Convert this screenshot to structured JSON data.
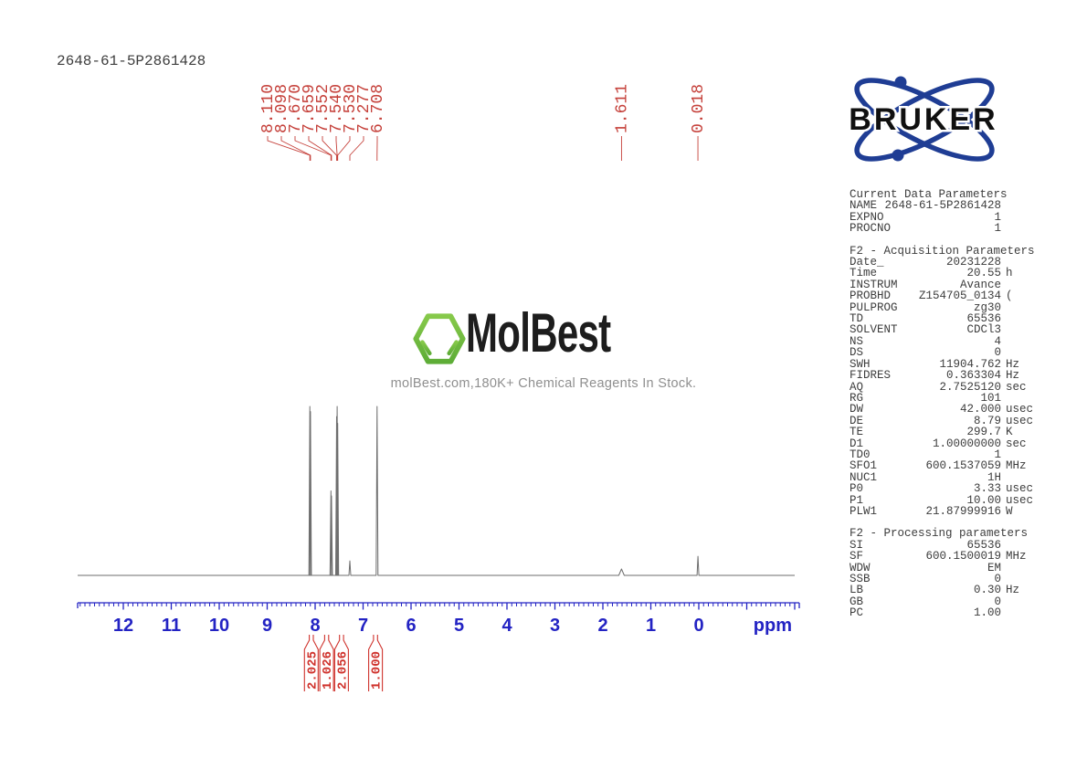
{
  "page": {
    "title": "2648-61-5P2861428"
  },
  "watermark": {
    "logo_text": "MolBest",
    "tagline": "molBest.com,180K+ Chemical Reagents In Stock."
  },
  "bruker": {
    "label": "BRUKER"
  },
  "colors": {
    "peak_label_red": "#c5403a",
    "integral_red": "#cf322c",
    "axis_blue": "#2323c3",
    "bruker_blue": "#1f3d94",
    "molbest_green": "#76c043",
    "spectrum_gray": "#6e6e6e",
    "text_dark": "#3d3d3d",
    "watermark_gray": "#8f8f8f"
  },
  "chart_data": {
    "type": "line",
    "title": "1H NMR spectrum 2648-61-5P2861428",
    "xlabel": "ppm",
    "x_ticks": [
      12,
      11,
      10,
      9,
      8,
      7,
      6,
      5,
      4,
      3,
      2,
      1,
      0
    ],
    "x_range_ppm": [
      12.95,
      -2.1
    ],
    "grid": false,
    "peak_labels": {
      "aromatic": [
        "8.110",
        "8.098",
        "7.670",
        "7.659",
        "7.552",
        "7.540",
        "7.530",
        "7.277",
        "6.708"
      ],
      "other": [
        "1.611",
        "0.018"
      ]
    },
    "peaks": [
      {
        "ppm": 8.11,
        "rel_height": 1.0
      },
      {
        "ppm": 8.098,
        "rel_height": 0.97
      },
      {
        "ppm": 7.67,
        "rel_height": 0.5
      },
      {
        "ppm": 7.659,
        "rel_height": 0.47
      },
      {
        "ppm": 7.552,
        "rel_height": 0.94
      },
      {
        "ppm": 7.54,
        "rel_height": 1.0
      },
      {
        "ppm": 7.53,
        "rel_height": 0.9
      },
      {
        "ppm": 7.277,
        "rel_height": 0.086
      },
      {
        "ppm": 6.708,
        "rel_height": 1.0
      },
      {
        "ppm": 1.611,
        "rel_height": 0.038,
        "broad": true
      },
      {
        "ppm": 0.018,
        "rel_height": 0.113
      }
    ],
    "integrals": [
      {
        "value": "2.025",
        "ppm": 8.08
      },
      {
        "value": "1.026",
        "ppm": 7.76
      },
      {
        "value": "2.056",
        "ppm": 7.45
      },
      {
        "value": "1.000",
        "ppm": 6.74
      }
    ]
  },
  "parameters": {
    "sections": [
      {
        "heading": "Current Data Parameters",
        "rows": [
          [
            "NAME",
            "2648-61-5P2861428",
            ""
          ],
          [
            "EXPNO",
            "1",
            ""
          ],
          [
            "PROCNO",
            "1",
            ""
          ]
        ]
      },
      {
        "heading": "F2 - Acquisition Parameters",
        "rows": [
          [
            "Date_",
            "20231228",
            ""
          ],
          [
            "Time",
            "20.55",
            "h"
          ],
          [
            "INSTRUM",
            "Avance",
            ""
          ],
          [
            "PROBHD",
            "Z154705_0134",
            "("
          ],
          [
            "PULPROG",
            "zg30",
            ""
          ],
          [
            "TD",
            "65536",
            ""
          ],
          [
            "SOLVENT",
            "CDCl3",
            ""
          ],
          [
            "NS",
            "4",
            ""
          ],
          [
            "DS",
            "0",
            ""
          ],
          [
            "SWH",
            "11904.762",
            "Hz"
          ],
          [
            "FIDRES",
            "0.363304",
            "Hz"
          ],
          [
            "AQ",
            "2.7525120",
            "sec"
          ],
          [
            "RG",
            "101",
            ""
          ],
          [
            "DW",
            "42.000",
            "usec"
          ],
          [
            "DE",
            "8.79",
            "usec"
          ],
          [
            "TE",
            "299.7",
            "K"
          ],
          [
            "D1",
            "1.00000000",
            "sec"
          ],
          [
            "TD0",
            "1",
            ""
          ],
          [
            "SFO1",
            "600.1537059",
            "MHz"
          ],
          [
            "NUC1",
            "1H",
            ""
          ],
          [
            "P0",
            "3.33",
            "usec"
          ],
          [
            "P1",
            "10.00",
            "usec"
          ],
          [
            "PLW1",
            "21.87999916",
            "W"
          ]
        ]
      },
      {
        "heading": "F2 - Processing parameters",
        "rows": [
          [
            "SI",
            "65536",
            ""
          ],
          [
            "SF",
            "600.1500019",
            "MHz"
          ],
          [
            "WDW",
            "EM",
            ""
          ],
          [
            "SSB",
            "0",
            ""
          ],
          [
            "LB",
            "0.30",
            "Hz"
          ],
          [
            "GB",
            "0",
            ""
          ],
          [
            "PC",
            "1.00",
            ""
          ]
        ]
      }
    ]
  }
}
